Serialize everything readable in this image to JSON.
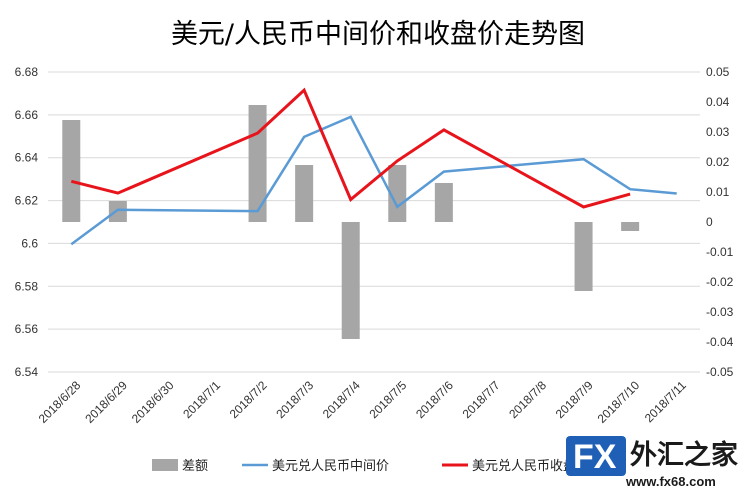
{
  "chart_data": {
    "type": "bar+line",
    "title": "美元/人民币中间价和收盘价走势图",
    "categories": [
      "2018/6/28",
      "2018/6/29",
      "2018/6/30",
      "2018/7/1",
      "2018/7/2",
      "2018/7/3",
      "2018/7/4",
      "2018/7/5",
      "2018/7/6",
      "2018/7/7",
      "2018/7/8",
      "2018/7/9",
      "2018/7/10",
      "2018/7/11"
    ],
    "left_axis": {
      "min": 6.54,
      "max": 6.68,
      "ticks": [
        "6.54",
        "6.56",
        "6.58",
        "6.6",
        "6.62",
        "6.64",
        "6.66",
        "6.68"
      ]
    },
    "right_axis": {
      "min": -0.05,
      "max": 0.05,
      "ticks": [
        "-0.05",
        "-0.04",
        "-0.03",
        "-0.02",
        "-0.01",
        "0",
        "0.01",
        "0.02",
        "0.03",
        "0.04",
        "0.05"
      ]
    },
    "grid": true,
    "legend_position": "bottom",
    "series": [
      {
        "name": "差额",
        "type": "bar",
        "axis": "right",
        "color": "#a6a6a6",
        "values": [
          0.034,
          0.007,
          null,
          null,
          0.039,
          0.019,
          -0.039,
          0.019,
          0.013,
          null,
          null,
          -0.023,
          -0.003,
          null
        ]
      },
      {
        "name": "美元兑人民币中间价",
        "type": "line",
        "axis": "left",
        "color": "#5b9bd5",
        "points": [
          [
            0,
            6.5996
          ],
          [
            1,
            6.6157
          ],
          [
            4,
            6.6151
          ],
          [
            5,
            6.6497
          ],
          [
            6,
            6.6591
          ],
          [
            7,
            6.6171
          ],
          [
            8,
            6.6335
          ],
          [
            11,
            6.6393
          ],
          [
            12,
            6.6253
          ],
          [
            13,
            6.6233
          ]
        ]
      },
      {
        "name": "美元兑人民币收盘价",
        "type": "line",
        "axis": "left",
        "color": "#e8141b",
        "points": [
          [
            0,
            6.629
          ],
          [
            1,
            6.6235
          ],
          [
            4,
            6.6515
          ],
          [
            5,
            6.6715
          ],
          [
            6,
            6.6205
          ],
          [
            7,
            6.6385
          ],
          [
            8,
            6.653
          ],
          [
            11,
            6.617
          ],
          [
            12,
            6.623
          ]
        ]
      }
    ]
  },
  "logo": {
    "fx": "FX",
    "cn": "外汇之家",
    "url": "www.fx68.com"
  }
}
